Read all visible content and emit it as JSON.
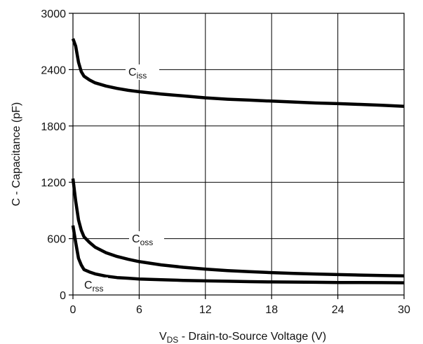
{
  "chart_data": {
    "type": "line",
    "title": "",
    "xlabel_main": "V",
    "xlabel_sub": "DS",
    "xlabel_rest": " - Drain-to-Source Voltage (V)",
    "ylabel": "C - Capacitance (pF)",
    "xlim": [
      0,
      30
    ],
    "ylim": [
      0,
      3000
    ],
    "xticks": [
      0,
      6,
      12,
      18,
      24,
      30
    ],
    "yticks": [
      0,
      600,
      1200,
      1800,
      2400,
      3000
    ],
    "xtick_labels": [
      "0",
      "6",
      "12",
      "18",
      "24",
      "30"
    ],
    "ytick_labels": [
      "0",
      "600",
      "1200",
      "1800",
      "2400",
      "3000"
    ],
    "grid": true,
    "legend": "none",
    "series": [
      {
        "name": "Ciss",
        "label_main": "C",
        "label_sub": "iss",
        "color": "#000000",
        "x": [
          0,
          0.25,
          0.5,
          0.75,
          1,
          1.5,
          2,
          3,
          4,
          5,
          6,
          8,
          10,
          12,
          14,
          16,
          18,
          20,
          22,
          24,
          26,
          28,
          30
        ],
        "y": [
          2730,
          2650,
          2480,
          2380,
          2330,
          2290,
          2260,
          2225,
          2200,
          2180,
          2165,
          2140,
          2120,
          2100,
          2085,
          2075,
          2065,
          2055,
          2045,
          2038,
          2030,
          2020,
          2010
        ]
      },
      {
        "name": "Coss",
        "label_main": "C",
        "label_sub": "oss",
        "color": "#000000",
        "x": [
          0,
          0.25,
          0.5,
          0.75,
          1,
          1.5,
          2,
          3,
          4,
          5,
          6,
          8,
          10,
          12,
          14,
          16,
          18,
          20,
          22,
          24,
          26,
          28,
          30
        ],
        "y": [
          1240,
          1000,
          800,
          690,
          620,
          560,
          510,
          450,
          410,
          380,
          355,
          320,
          295,
          275,
          260,
          248,
          238,
          230,
          223,
          217,
          212,
          207,
          203
        ]
      },
      {
        "name": "Crss",
        "label_main": "C",
        "label_sub": "rss",
        "color": "#000000",
        "x": [
          0,
          0.25,
          0.5,
          0.75,
          1,
          1.5,
          2,
          3,
          4,
          5,
          6,
          8,
          10,
          12,
          14,
          16,
          18,
          20,
          22,
          24,
          26,
          28,
          30
        ],
        "y": [
          740,
          560,
          390,
          320,
          270,
          245,
          225,
          200,
          185,
          178,
          170,
          162,
          155,
          150,
          146,
          142,
          139,
          137,
          135,
          133,
          132,
          131,
          130
        ]
      }
    ]
  }
}
